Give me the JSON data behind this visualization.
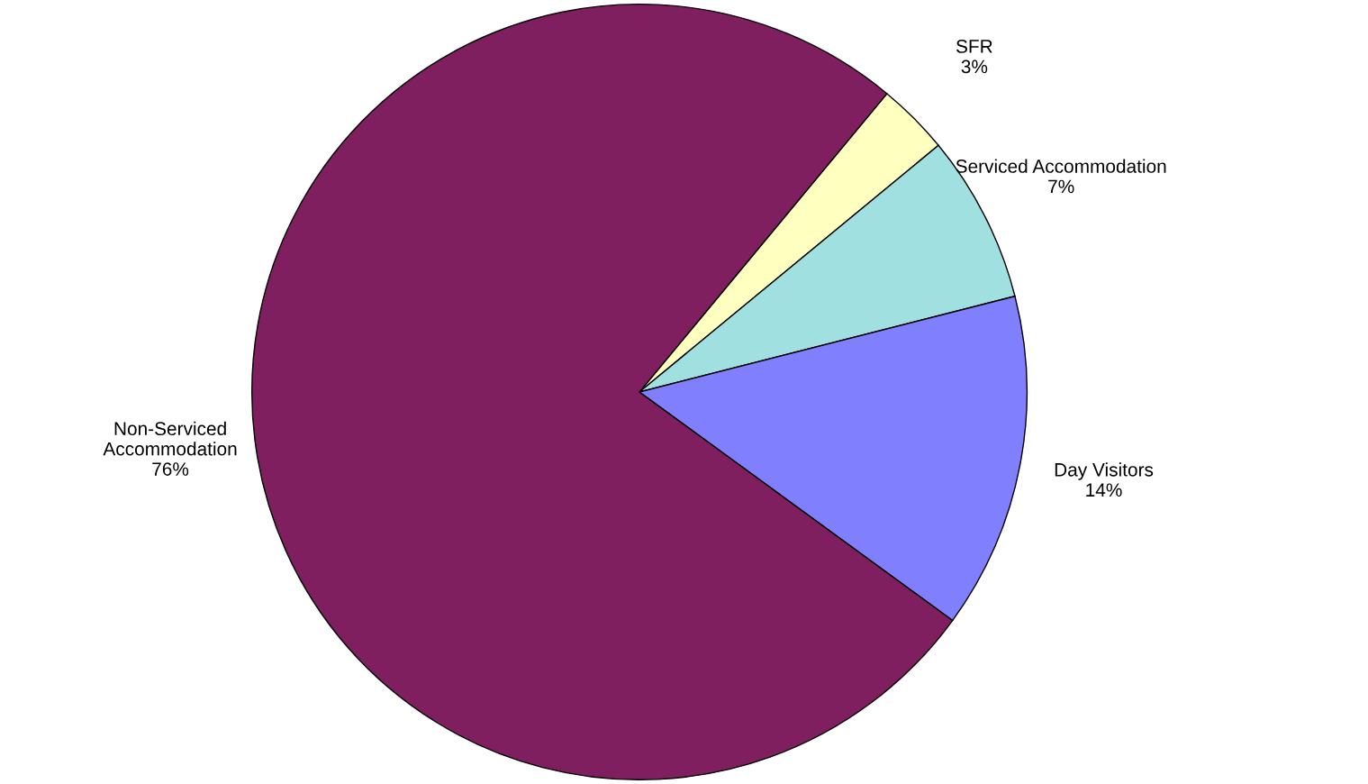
{
  "chart_data": {
    "type": "pie",
    "categories": [
      "SFR",
      "Serviced Accommodation",
      "Day Visitors",
      "Non-Serviced\nAccommodation"
    ],
    "values": [
      3,
      7,
      14,
      76
    ],
    "colors": [
      "#ffffc0",
      "#a0e0e0",
      "#8080ff",
      "#7f1f5f"
    ],
    "value_labels": [
      "3%",
      "7%",
      "14%",
      "76%"
    ],
    "legend": false
  }
}
